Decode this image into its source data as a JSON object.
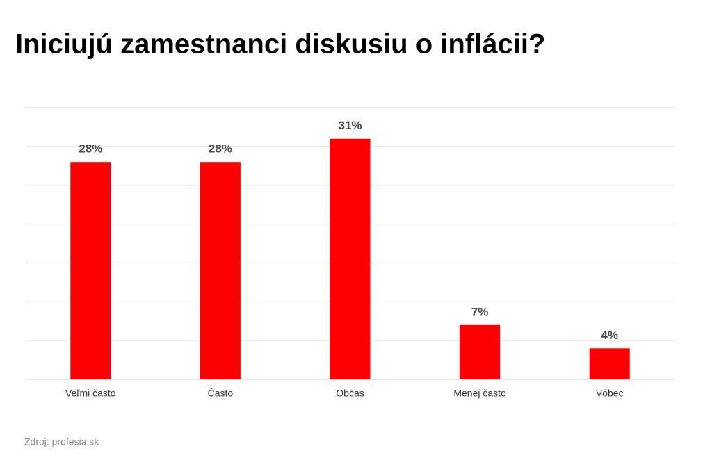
{
  "chart_data": {
    "type": "bar",
    "title": "Iniciujú zamestnanci diskusiu o inflácii?",
    "categories": [
      "Veľmi často",
      "Často",
      "Občas",
      "Menej často",
      "Vôbec"
    ],
    "values": [
      28,
      28,
      31,
      7,
      4
    ],
    "value_labels": [
      "28%",
      "28%",
      "31%",
      "7%",
      "4%"
    ],
    "color": "#ff0000",
    "ylim": [
      0,
      35
    ],
    "yticks": [
      0,
      5,
      10,
      15,
      20,
      25,
      30,
      35
    ],
    "grid": true,
    "source": "Zdroj: profesia.sk"
  }
}
